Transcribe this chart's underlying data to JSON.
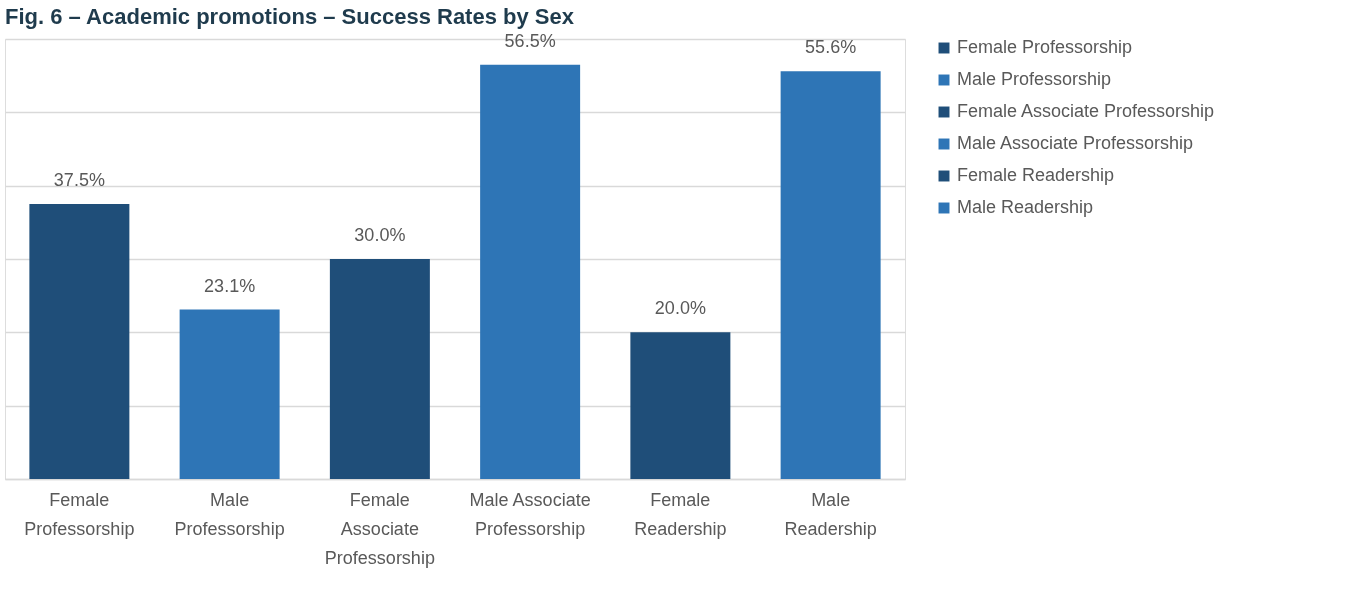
{
  "chart_data": {
    "type": "bar",
    "title": "Fig. 6 – Academic promotions – Success Rates by Sex",
    "categories": [
      "Female Professorship",
      "Male Professorship",
      "Female Associate Professorship",
      "Male Associate Professorship",
      "Female Readership",
      "Male Readership"
    ],
    "series": [
      {
        "name": "Female Professorship",
        "color": "#1f4e79",
        "values": [
          37.5,
          null,
          null,
          null,
          null,
          null
        ],
        "value_labels": [
          "37.5%",
          null,
          null,
          null,
          null,
          null
        ]
      },
      {
        "name": "Male Professorship",
        "color": "#2e75b6",
        "values": [
          null,
          23.1,
          null,
          null,
          null,
          null
        ],
        "value_labels": [
          null,
          "23.1%",
          null,
          null,
          null,
          null
        ]
      },
      {
        "name": "Female Associate Professorship",
        "color": "#1f4e79",
        "values": [
          null,
          null,
          30.0,
          null,
          null,
          null
        ],
        "value_labels": [
          null,
          null,
          "30.0%",
          null,
          null,
          null
        ]
      },
      {
        "name": "Male Associate Professorship",
        "color": "#2e75b6",
        "values": [
          null,
          null,
          null,
          56.5,
          null,
          null
        ],
        "value_labels": [
          null,
          null,
          null,
          "56.5%",
          null,
          null
        ]
      },
      {
        "name": "Female Readership",
        "color": "#1f4e79",
        "values": [
          null,
          null,
          null,
          null,
          20.0,
          null
        ],
        "value_labels": [
          null,
          null,
          null,
          null,
          "20.0%",
          null
        ]
      },
      {
        "name": "Male Readership",
        "color": "#2e75b6",
        "values": [
          null,
          null,
          null,
          null,
          null,
          55.6
        ],
        "value_labels": [
          null,
          null,
          null,
          null,
          null,
          "55.6%"
        ]
      }
    ],
    "ylim": [
      0,
      60
    ],
    "yticks": [
      {
        "value": 0,
        "label": null
      },
      {
        "value": 10,
        "label": null
      },
      {
        "value": 20,
        "label": null
      },
      {
        "value": 30,
        "label": null
      },
      {
        "value": 40,
        "label": null
      },
      {
        "value": 50,
        "label": null
      },
      {
        "value": 60,
        "label": null
      }
    ],
    "tick_labels": "x",
    "grid": "y",
    "legend": "right"
  }
}
